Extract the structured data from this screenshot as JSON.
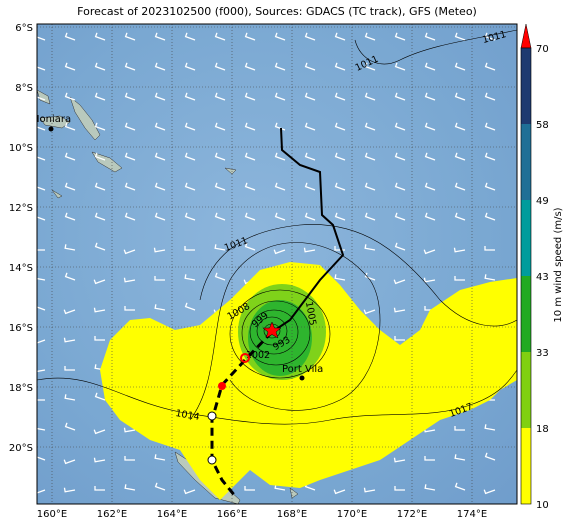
{
  "title": "Forecast of 2023102500 (f000), Sources: GDACS (TC track), GFS (Meteo)",
  "lon_ticks": [
    "160°E",
    "162°E",
    "164°E",
    "166°E",
    "168°E",
    "170°E",
    "172°E",
    "174°E"
  ],
  "lat_ticks": [
    "6°S",
    "8°S",
    "10°S",
    "12°S",
    "14°S",
    "16°S",
    "18°S",
    "20°S"
  ],
  "colorbar": {
    "label": "10 m wind speed (m/s)",
    "ticks": [
      "10",
      "18",
      "33",
      "43",
      "49",
      "58",
      "70"
    ]
  },
  "places": [
    "Honiara",
    "Port Vila"
  ],
  "isobar_labels": [
    "1011",
    "1011",
    "1011",
    "1008",
    "1014",
    "1017",
    "1002",
    "999",
    "993",
    "1005"
  ]
}
